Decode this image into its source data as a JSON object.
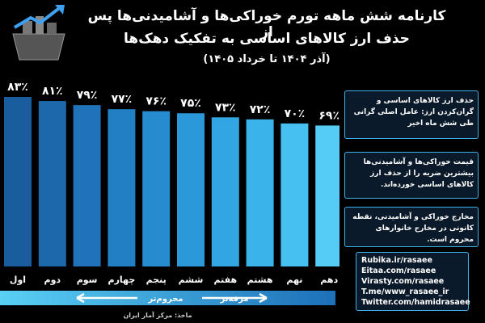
{
  "chart_data": {
    "type": "bar",
    "title": "کارنامه شش ماهه تورم خوراکی‌ها و آشامیدنی‌ها پس از",
    "title_line_2": "حذف ارز کالاهای اساسی به تفکیک دهک‌ها",
    "subtitle": "(آذر ۱۴۰۴ تا خرداد ۱۴۰۵)",
    "categories": [
      "اول",
      "دوم",
      "سوم",
      "چهارم",
      "پنجم",
      "ششم",
      "هفتم",
      "هشتم",
      "نهم",
      "دهم"
    ],
    "values": [
      83,
      81,
      79,
      77,
      76,
      75,
      73,
      72,
      70,
      69
    ],
    "value_labels": [
      "۸۳٪",
      "۸۱٪",
      "۷۹٪",
      "۷۷٪",
      "۷۶٪",
      "۷۵٪",
      "۷۳٪",
      "۷۲٪",
      "۷۰٪",
      "۶۹٪"
    ],
    "colors": [
      "#1a5d9e",
      "#1d68ab",
      "#2073b8",
      "#237fc4",
      "#278bcf",
      "#2b98d9",
      "#31a6e2",
      "#3ab3ea",
      "#46c0f0",
      "#55ccf4"
    ],
    "poorer_label": "محروم‌تر",
    "richer_label": "مرفه‌تر",
    "source": "ماخذ: مرکز آمار ایران"
  },
  "notes": [
    "حذف ارز کالاهای اساسی و گران‌کردن ارز: عامل اصلی گرانی طی شش ماه اخیر",
    "قیمت خوراکی‌ها و آشامیدنی‌ها بیشترین ضربه را از حذف ارز کالاهای اساسی خورده‌اند.",
    "مخارج خوراکی و آشامیدنی، نقطه کانونی در مخارج خانوارهای محروم است."
  ],
  "links": [
    "Rubika.ir/rasaee",
    "Eitaa.com/rasaee",
    "Virasty.com/rasaee",
    "T.me/www_rasaee_ir",
    "Twitter.com/hamidrasaee"
  ]
}
